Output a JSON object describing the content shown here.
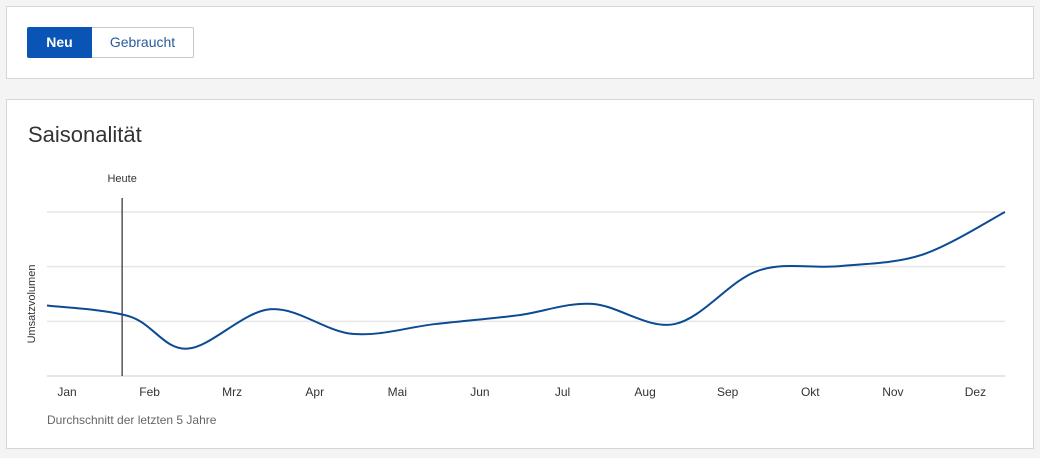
{
  "toggle": {
    "options": [
      "Neu",
      "Gebraucht"
    ],
    "selected": "Neu"
  },
  "colors": {
    "accent": "#0a54b5",
    "line": "#0b4a94",
    "grid": "#e6e6e6",
    "marker": "#555555"
  },
  "chart_data": {
    "type": "line",
    "title": "Saisonalität",
    "ylabel": "Umsatzvolumen",
    "xlabel": "",
    "footnote": "Durchschnitt der letzten 5 Jahre",
    "grid": true,
    "y_tick_labels_shown": false,
    "ylim": [
      0,
      3
    ],
    "marker": {
      "label": "Heute",
      "x": 0.91
    },
    "categories": [
      "Jan",
      "Feb",
      "Mrz",
      "Apr",
      "Mai",
      "Jun",
      "Jul",
      "Aug",
      "Sep",
      "Okt",
      "Nov",
      "Dez"
    ],
    "series": [
      {
        "x": [
          0,
          1,
          1.7,
          2.7,
          3.7,
          4.7,
          5.7,
          6.6,
          7.6,
          8.6,
          9.6,
          10.6,
          11.6
        ],
        "values": [
          1.29,
          1.09,
          0.5,
          1.22,
          0.77,
          0.95,
          1.11,
          1.32,
          0.95,
          1.92,
          2.01,
          2.22,
          3.0
        ]
      }
    ]
  }
}
